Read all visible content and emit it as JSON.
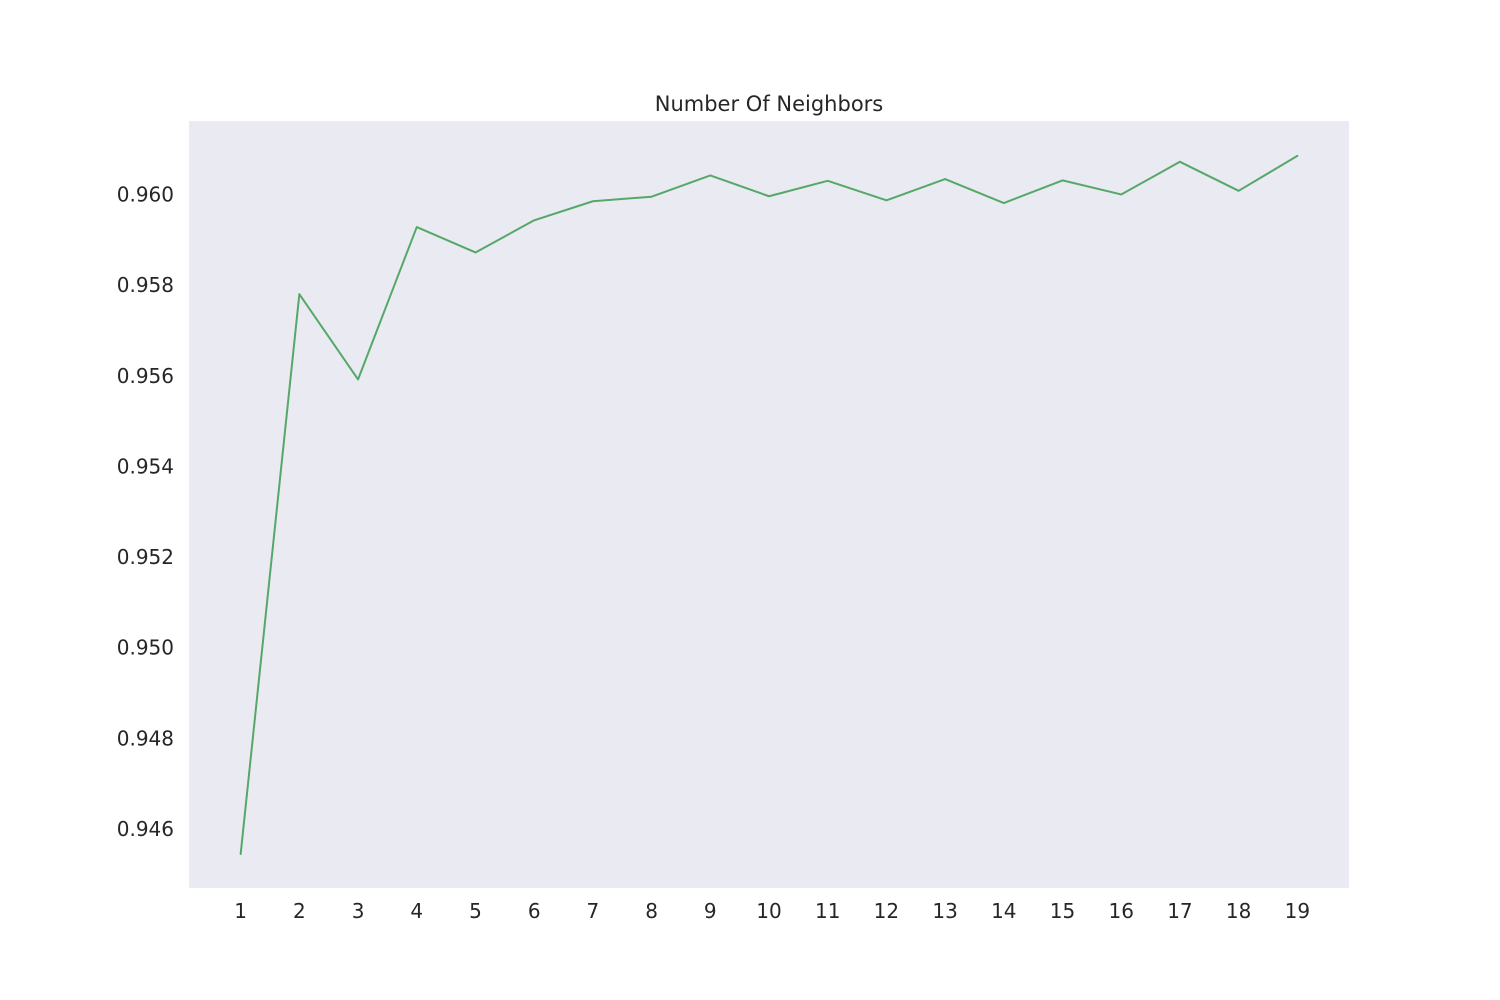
{
  "chart_data": {
    "type": "line",
    "title": "Number Of Neighbors",
    "xlabel": "",
    "ylabel": "",
    "x": [
      1,
      2,
      3,
      4,
      5,
      6,
      7,
      8,
      9,
      10,
      11,
      12,
      13,
      14,
      15,
      16,
      17,
      18,
      19
    ],
    "series": [
      {
        "values": [
          0.94545,
          0.9578,
          0.95592,
          0.95928,
          0.95872,
          0.95943,
          0.95985,
          0.95995,
          0.96042,
          0.95996,
          0.9603,
          0.95987,
          0.96034,
          0.95981,
          0.96031,
          0.96,
          0.96072,
          0.96008,
          0.96085
        ]
      }
    ],
    "xticks": [
      "1",
      "2",
      "3",
      "4",
      "5",
      "6",
      "7",
      "8",
      "9",
      "10",
      "11",
      "12",
      "13",
      "14",
      "15",
      "16",
      "17",
      "18",
      "19"
    ],
    "yticks": [
      "0.946",
      "0.948",
      "0.950",
      "0.952",
      "0.954",
      "0.956",
      "0.958",
      "0.960"
    ],
    "ytick_values": [
      0.946,
      0.948,
      0.95,
      0.952,
      0.954,
      0.956,
      0.958,
      0.96
    ],
    "xlim": [
      0.12,
      19.88
    ],
    "ylim": [
      0.9447,
      0.96162
    ],
    "grid": false,
    "legend": "none",
    "colors": {
      "background": "#ffffff",
      "plot_background": "#eaeaf2",
      "line": "#55a868",
      "text": "#262626"
    }
  }
}
